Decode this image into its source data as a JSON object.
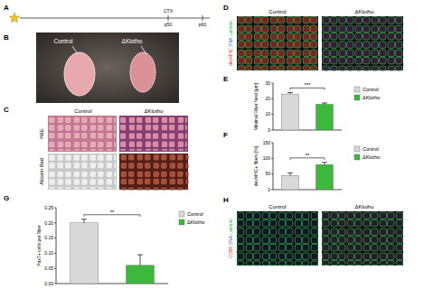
{
  "figure": {
    "panels": [
      "A",
      "B",
      "C",
      "D",
      "E",
      "F",
      "G",
      "H"
    ],
    "timeline": {
      "labels": [
        "CTX",
        "p50",
        "p60"
      ]
    },
    "B": {
      "labels": [
        "Control",
        "ΔKlotho"
      ]
    },
    "C": {
      "columns": [
        "Control",
        "ΔKlotho"
      ],
      "rows": [
        "H&E",
        "Alizarin Red"
      ]
    },
    "D": {
      "columns": [
        "Control",
        "ΔKlotho"
      ],
      "channels": [
        {
          "text": "devMHC",
          "color": "#e0302a"
        },
        {
          "text": "DNA",
          "color": "#3a5fd0"
        },
        {
          "text": "Laminin",
          "color": "#2fb84a"
        }
      ]
    },
    "H": {
      "columns": [
        "Control",
        "ΔKlotho"
      ],
      "channels": [
        {
          "text": "CD68",
          "color": "#e0302a"
        },
        {
          "text": "DNA",
          "color": "#3a5fd0"
        },
        {
          "text": "Laminin",
          "color": "#2fb84a"
        }
      ]
    }
  },
  "chart_data": [
    {
      "type": "bar",
      "y_label": "Minimal Fiber feret [µm]",
      "categories": [
        "Control",
        "ΔKlotho"
      ],
      "values": [
        23,
        16.5
      ],
      "errors": [
        1,
        0.8
      ],
      "colors": [
        "#d9d9d9",
        "#3cb83c"
      ],
      "ylim": [
        0,
        30
      ],
      "yticks": [
        0,
        10,
        20,
        30
      ],
      "annotation": "***",
      "legend": "right"
    },
    {
      "type": "bar",
      "y_label": "devMHC+ fibers [%]",
      "categories": [
        "Control",
        "ΔKlotho"
      ],
      "values": [
        45,
        80
      ],
      "errors": [
        8,
        7
      ],
      "colors": [
        "#d9d9d9",
        "#3cb83c"
      ],
      "ylim": [
        0,
        150
      ],
      "yticks": [
        0,
        50,
        100,
        150
      ],
      "annotation": "**",
      "legend": "right"
    },
    {
      "type": "bar",
      "y_label": "Pax7+ cells per fiber",
      "categories": [
        "Control",
        "ΔKlotho"
      ],
      "values": [
        0.2,
        0.06
      ],
      "errors": [
        0.012,
        0.035
      ],
      "colors": [
        "#d9d9d9",
        "#3cb83c"
      ],
      "ylim": [
        0,
        0.25
      ],
      "yticks": [
        {
          "value": 0,
          "label": "0.00"
        },
        {
          "value": 0.05,
          "label": "0.05"
        },
        {
          "value": 0.1,
          "label": "0.10"
        },
        {
          "value": 0.15,
          "label": "0.15"
        },
        {
          "value": 0.2,
          "label": "0.20"
        },
        {
          "value": 0.25,
          "label": "0.25"
        }
      ],
      "annotation": "**",
      "legend": "right"
    }
  ]
}
